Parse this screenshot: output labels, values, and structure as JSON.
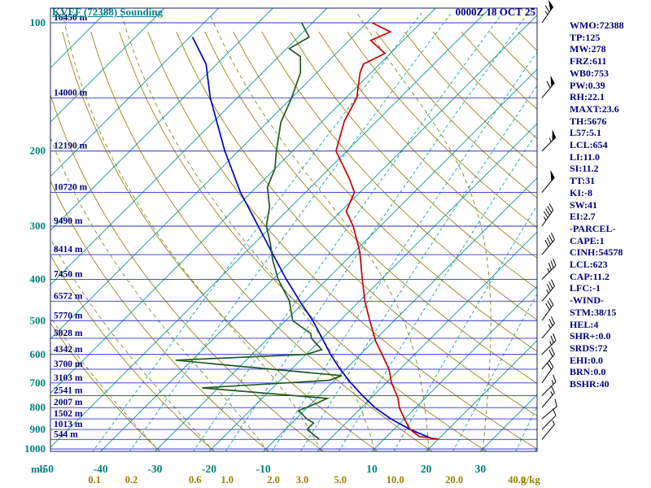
{
  "header": {
    "title": "KVEF (72388) Sounding",
    "datetime": "0000Z 18 OCT 25"
  },
  "stats": {
    "lines": [
      "WMO:72388",
      "TP:125",
      "MW:278",
      "FRZ:611",
      "WB0:753",
      "PW:0.39",
      "RH:22.1",
      "MAXT:23.6",
      "TH:5676",
      "L57:5.1",
      "LCL:654",
      "LI:11.0",
      "SI:11.2",
      "TT:31",
      "KI:-8",
      "SW:41",
      "EI:2.7",
      "-PARCEL-",
      "CAPE:1",
      "CINH:54578",
      "LCL:623",
      "CAP:11.2",
      "LFC:-1",
      "-WIND-",
      "STM:38/15",
      "HEL:4",
      "SHR+:0.0",
      "SRDS:72",
      "EHI:0.0",
      "BRN:0.0",
      "BSHR:40"
    ]
  },
  "axes": {
    "pressure_unit": "mb",
    "mixing_unit": "g/kg",
    "pressure_ticks": [
      100,
      200,
      300,
      400,
      500,
      600,
      700,
      800,
      900,
      1000
    ],
    "temp_ticks": [
      -50,
      -40,
      -30,
      -20,
      -10,
      10,
      20,
      30
    ],
    "height_labels": [
      {
        "p": 100,
        "label": "16450 m"
      },
      {
        "p": 150,
        "label": "14000 m"
      },
      {
        "p": 200,
        "label": "12190 m"
      },
      {
        "p": 250,
        "label": "10720 m"
      },
      {
        "p": 300,
        "label": "9490 m"
      },
      {
        "p": 350,
        "label": "8414 m"
      },
      {
        "p": 400,
        "label": "7450 m"
      },
      {
        "p": 450,
        "label": "6572 m"
      },
      {
        "p": 500,
        "label": "5770 m"
      },
      {
        "p": 550,
        "label": "5028 m"
      },
      {
        "p": 600,
        "label": "4342 m"
      },
      {
        "p": 650,
        "label": "3700 m"
      },
      {
        "p": 700,
        "label": "3103 m"
      },
      {
        "p": 750,
        "label": "2541 m"
      },
      {
        "p": 800,
        "label": "2007 m"
      },
      {
        "p": 850,
        "label": "1502 m"
      },
      {
        "p": 900,
        "label": "1013 m"
      },
      {
        "p": 950,
        "label": "544 m"
      }
    ]
  },
  "colors": {
    "teal": "#008080",
    "navy": "#000080",
    "isobar": "#3333cc",
    "isotherm": "#0d9494",
    "mixing_ratio": "#17a2a2",
    "dry_adiabat": "#9c8518",
    "moist_adiabat": "#7d8c2a",
    "mixing_label": "#998200",
    "frame": "#202060",
    "temp_trace": "#c80000",
    "dewpoint_trace": "#1e5b1e",
    "parcel_trace": "#0000c8",
    "barb": "#000000"
  },
  "chart_data": {
    "type": "skewt-log-p-sounding",
    "station": "KVEF 72388",
    "valid": "0000Z 18 OCT 25",
    "pressure_range_mb": [
      100,
      1000
    ],
    "temp_axis_range_c": [
      -50,
      40
    ],
    "grid": {
      "isobars": [
        100,
        150,
        200,
        250,
        300,
        350,
        400,
        450,
        500,
        550,
        600,
        650,
        700,
        750,
        800,
        850,
        900,
        950,
        1000
      ],
      "isotherms": [
        -120,
        -110,
        -100,
        -90,
        -80,
        -70,
        -60,
        -50,
        -40,
        -30,
        -20,
        -10,
        0,
        10,
        20,
        30,
        40
      ],
      "mixing_ratios": [
        {
          "v": 0.1,
          "label": "0.1"
        },
        {
          "v": 0.2,
          "label": "0.2"
        },
        {
          "v": 0.6,
          "label": "0.6"
        },
        {
          "v": 1,
          "label": "1.0"
        },
        {
          "v": 2,
          "label": "2.0"
        },
        {
          "v": 3,
          "label": "3.0"
        },
        {
          "v": 5,
          "label": "5.0"
        },
        {
          "v": 10,
          "label": "10.0"
        },
        {
          "v": 20,
          "label": "20.0"
        },
        {
          "v": 40,
          "label": "40.0"
        }
      ],
      "dry_adiabats_theta": [
        -30,
        -20,
        -10,
        0,
        10,
        20,
        30,
        40,
        50,
        60,
        70,
        80,
        90,
        100,
        110,
        120,
        130,
        140,
        150,
        160,
        170,
        180
      ],
      "moist_adiabats_t0": [
        -30,
        -20,
        -10,
        0,
        10,
        20,
        30
      ]
    },
    "temperature_trace": [
      [
        948,
        20
      ],
      [
        935,
        16
      ],
      [
        900,
        13
      ],
      [
        850,
        10
      ],
      [
        800,
        7
      ],
      [
        760,
        5
      ],
      [
        700,
        1
      ],
      [
        650,
        -2
      ],
      [
        600,
        -6
      ],
      [
        560,
        -9.5
      ],
      [
        500,
        -14.5
      ],
      [
        450,
        -19
      ],
      [
        400,
        -23.5
      ],
      [
        345,
        -29
      ],
      [
        300,
        -35
      ],
      [
        277,
        -39
      ],
      [
        250,
        -41
      ],
      [
        232,
        -44.5
      ],
      [
        200,
        -52
      ],
      [
        170,
        -56
      ],
      [
        150,
        -58
      ],
      [
        131,
        -62
      ],
      [
        125,
        -63
      ],
      [
        118,
        -61
      ],
      [
        110,
        -66
      ],
      [
        105,
        -64
      ],
      [
        100,
        -69
      ]
    ],
    "dewpoint_trace": [
      [
        948,
        -2
      ],
      [
        900,
        -6
      ],
      [
        869,
        -6
      ],
      [
        850,
        -8
      ],
      [
        813,
        -11
      ],
      [
        780,
        -9
      ],
      [
        761,
        -8
      ],
      [
        719,
        -33
      ],
      [
        690,
        -11
      ],
      [
        673,
        -9.5
      ],
      [
        640,
        -30
      ],
      [
        619,
        -43
      ],
      [
        600,
        -20
      ],
      [
        585,
        -18
      ],
      [
        550,
        -22
      ],
      [
        536,
        -23
      ],
      [
        500,
        -28.7
      ],
      [
        449,
        -33
      ],
      [
        400,
        -39
      ],
      [
        361,
        -43.5
      ],
      [
        330,
        -47
      ],
      [
        300,
        -51
      ],
      [
        270,
        -54
      ],
      [
        243,
        -58
      ],
      [
        220,
        -60
      ],
      [
        200,
        -63
      ],
      [
        171,
        -67.5
      ],
      [
        150,
        -70
      ],
      [
        131,
        -73
      ],
      [
        120,
        -76
      ],
      [
        115,
        -79.5
      ],
      [
        108,
        -78
      ],
      [
        100,
        -82
      ]
    ],
    "parcel_trace": [
      [
        948,
        19
      ],
      [
        900,
        13
      ],
      [
        850,
        7.5
      ],
      [
        800,
        2.5
      ],
      [
        750,
        -2
      ],
      [
        700,
        -6.5
      ],
      [
        650,
        -11
      ],
      [
        600,
        -15.5
      ],
      [
        550,
        -20
      ],
      [
        500,
        -25
      ],
      [
        450,
        -31
      ],
      [
        400,
        -37.5
      ],
      [
        350,
        -44.5
      ],
      [
        300,
        -52.5
      ],
      [
        250,
        -62
      ],
      [
        200,
        -72.5
      ],
      [
        150,
        -85
      ],
      [
        125,
        -92
      ],
      [
        108,
        -99.5
      ]
    ],
    "wind_barbs": [
      {
        "p": 950,
        "dir": 40,
        "spd": 5
      },
      {
        "p": 900,
        "dir": 45,
        "spd": 10
      },
      {
        "p": 850,
        "dir": 50,
        "spd": 10
      },
      {
        "p": 800,
        "dir": 40,
        "spd": 15
      },
      {
        "p": 750,
        "dir": 45,
        "spd": 15
      },
      {
        "p": 700,
        "dir": 35,
        "spd": 20
      },
      {
        "p": 650,
        "dir": 40,
        "spd": 20
      },
      {
        "p": 600,
        "dir": 45,
        "spd": 25
      },
      {
        "p": 550,
        "dir": 40,
        "spd": 25
      },
      {
        "p": 500,
        "dir": 35,
        "spd": 30
      },
      {
        "p": 450,
        "dir": 40,
        "spd": 35
      },
      {
        "p": 400,
        "dir": 45,
        "spd": 35
      },
      {
        "p": 350,
        "dir": 40,
        "spd": 40
      },
      {
        "p": 300,
        "dir": 35,
        "spd": 45
      },
      {
        "p": 250,
        "dir": 40,
        "spd": 50
      },
      {
        "p": 200,
        "dir": 45,
        "spd": 55
      },
      {
        "p": 150,
        "dir": 40,
        "spd": 60
      },
      {
        "p": 100,
        "dir": 35,
        "spd": 65
      }
    ]
  }
}
